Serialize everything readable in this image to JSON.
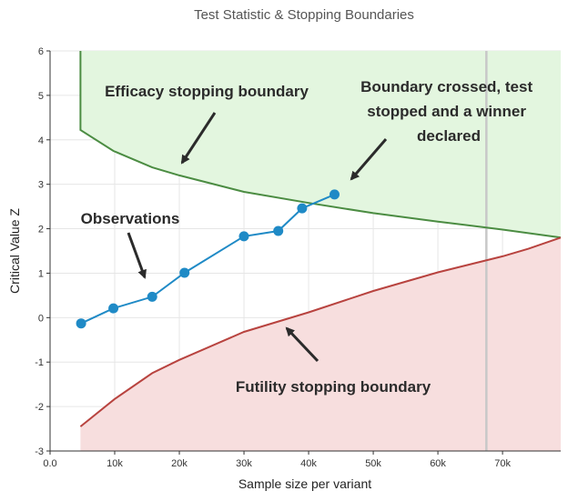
{
  "chart_data": {
    "type": "line",
    "title": "Test Statistic & Stopping Boundaries",
    "xlabel": "Sample size per variant",
    "ylabel": "Critical Value Z",
    "xlim": [
      0,
      79000
    ],
    "ylim": [
      -3,
      6
    ],
    "x_ticks": [
      0,
      10000,
      20000,
      30000,
      40000,
      50000,
      60000,
      70000
    ],
    "x_tick_labels": [
      "0.0",
      "10k",
      "20k",
      "30k",
      "40k",
      "50k",
      "60k",
      "70k"
    ],
    "y_ticks": [
      -3,
      -2,
      -1,
      0,
      1,
      2,
      3,
      4,
      5,
      6
    ],
    "y_tick_labels": [
      "-3",
      "-2",
      "-1",
      "0",
      "1",
      "2",
      "3",
      "4",
      "5",
      "6"
    ],
    "grid": true,
    "series": [
      {
        "role": "efficacy-boundary",
        "color": "#4b8c42",
        "fill": "#e3f6df",
        "x": [
          4700,
          4700,
          9800,
          15800,
          20000,
          30000,
          40000,
          50000,
          60000,
          70000,
          79000
        ],
        "y": [
          6,
          4.22,
          3.75,
          3.38,
          3.2,
          2.83,
          2.58,
          2.35,
          2.16,
          1.98,
          1.8
        ]
      },
      {
        "role": "futility-boundary",
        "color": "#b8433f",
        "fill": "#f7dede",
        "x": [
          4700,
          10000,
          15800,
          20000,
          30000,
          40000,
          50000,
          60000,
          70000,
          74000,
          79000
        ],
        "y": [
          -2.45,
          -1.83,
          -1.25,
          -0.95,
          -0.32,
          0.12,
          0.6,
          1.02,
          1.38,
          1.55,
          1.8
        ]
      },
      {
        "role": "observations",
        "color": "#1f8ac6",
        "x": [
          4800,
          9800,
          15800,
          20800,
          30000,
          35300,
          39000,
          44000
        ],
        "y": [
          -0.13,
          0.21,
          0.47,
          1.01,
          1.83,
          1.95,
          2.46,
          2.77
        ]
      }
    ],
    "reference_line": {
      "x": 67500,
      "color": "#c8c8c8"
    },
    "annotations": [
      {
        "id": "efficacy",
        "lines": [
          "Efficacy stopping boundary"
        ]
      },
      {
        "id": "crossed",
        "lines": [
          "Boundary crossed, test",
          "stopped and a winner",
          "declared"
        ]
      },
      {
        "id": "observations",
        "lines": [
          "Observations"
        ]
      },
      {
        "id": "futility",
        "lines": [
          "Futility stopping boundary"
        ]
      }
    ]
  }
}
